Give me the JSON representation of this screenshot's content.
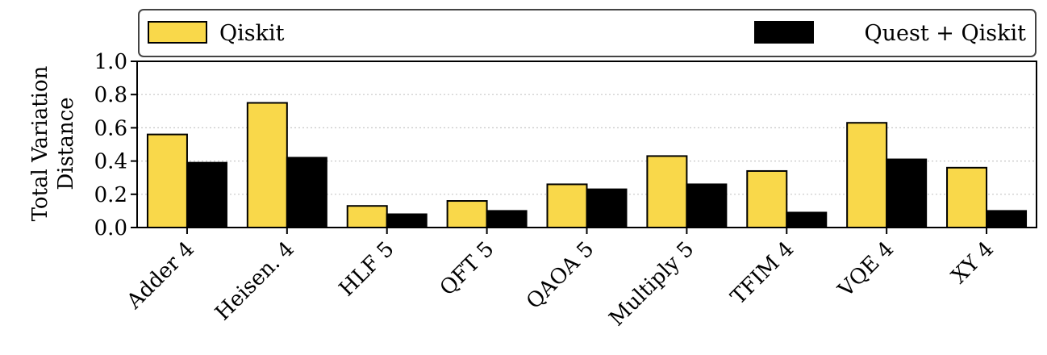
{
  "chart_data": {
    "type": "bar",
    "categories": [
      "Adder 4",
      "Heisen. 4",
      "HLF 5",
      "QFT 5",
      "QAOA 5",
      "Multiply 5",
      "TFIM 4",
      "VQE 4",
      "XY 4"
    ],
    "series": [
      {
        "name": "Qiskit",
        "values": [
          0.56,
          0.75,
          0.13,
          0.16,
          0.26,
          0.43,
          0.34,
          0.63,
          0.36
        ]
      },
      {
        "name": "Quest + Qiskit",
        "values": [
          0.39,
          0.42,
          0.08,
          0.1,
          0.23,
          0.26,
          0.09,
          0.41,
          0.1
        ]
      }
    ],
    "ylabel": [
      "Total Variation",
      "Distance"
    ],
    "ylim": [
      0,
      1.0
    ],
    "yticks": [
      "0.0",
      "0.2",
      "0.4",
      "0.6",
      "0.8",
      "1.0"
    ],
    "grid": "horizontal dotted",
    "legend_placement": "top",
    "colors": {
      "Qiskit": "#f9d84a",
      "Quest + Qiskit": "#000000"
    }
  }
}
